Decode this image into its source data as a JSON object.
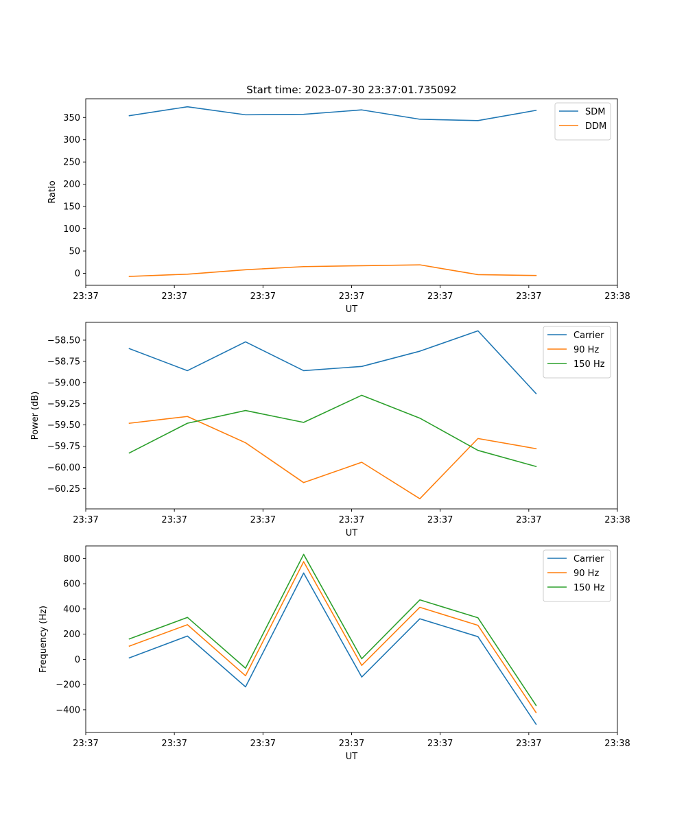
{
  "chart_data": [
    {
      "type": "line",
      "title": "Start time: 2023-07-30 23:37:01.735092",
      "xlabel": "UT",
      "ylabel": "Ratio",
      "x": [
        0,
        1,
        2,
        3,
        4,
        5,
        6,
        7
      ],
      "xlim": [
        -0.75,
        8.4
      ],
      "xtick_positions": [
        -0.75,
        0.775,
        2.3,
        3.825,
        5.35,
        6.875,
        8.4
      ],
      "xticks": [
        "23:37",
        "23:37",
        "23:37",
        "23:37",
        "23:37",
        "23:37",
        "23:38"
      ],
      "ylim": [
        -27,
        392
      ],
      "yticks": [
        0,
        50,
        100,
        150,
        200,
        250,
        300,
        350
      ],
      "legend": "top-right",
      "series": [
        {
          "name": "SDM",
          "color": "#1f77b4",
          "values": [
            354,
            374,
            356,
            357,
            367,
            346,
            343,
            366
          ]
        },
        {
          "name": "DDM",
          "color": "#ff7f0e",
          "values": [
            -7,
            -2,
            8,
            15,
            17,
            19,
            -3,
            -5
          ]
        }
      ]
    },
    {
      "type": "line",
      "title": "",
      "xlabel": "UT",
      "ylabel": "Power (dB)",
      "x": [
        0,
        1,
        2,
        3,
        4,
        5,
        6,
        7
      ],
      "xlim": [
        -0.75,
        8.4
      ],
      "xtick_positions": [
        -0.75,
        0.775,
        2.3,
        3.825,
        5.35,
        6.875,
        8.4
      ],
      "xticks": [
        "23:37",
        "23:37",
        "23:37",
        "23:37",
        "23:37",
        "23:37",
        "23:38"
      ],
      "ylim": [
        -60.49,
        -58.29
      ],
      "yticks": [
        -60.25,
        -60.0,
        -59.75,
        -59.5,
        -59.25,
        -59.0,
        -58.75,
        -58.5
      ],
      "ytick_labels": [
        "−60.25",
        "−60.00",
        "−59.75",
        "−59.50",
        "−59.25",
        "−59.00",
        "−58.75",
        "−58.50"
      ],
      "legend": "top-right",
      "series": [
        {
          "name": "Carrier",
          "color": "#1f77b4",
          "values": [
            -58.6,
            -58.86,
            -58.52,
            -58.86,
            -58.81,
            -58.63,
            -58.39,
            -59.13
          ]
        },
        {
          "name": "90 Hz",
          "color": "#ff7f0e",
          "values": [
            -59.48,
            -59.4,
            -59.71,
            -60.18,
            -59.94,
            -60.37,
            -59.66,
            -59.78
          ]
        },
        {
          "name": "150 Hz",
          "color": "#2ca02c",
          "values": [
            -59.83,
            -59.48,
            -59.33,
            -59.47,
            -59.15,
            -59.42,
            -59.8,
            -59.99
          ]
        }
      ]
    },
    {
      "type": "line",
      "title": "",
      "xlabel": "UT",
      "ylabel": "Frequency (Hz)",
      "x": [
        0,
        1,
        2,
        3,
        4,
        5,
        6,
        7
      ],
      "xlim": [
        -0.75,
        8.4
      ],
      "xtick_positions": [
        -0.75,
        0.775,
        2.3,
        3.825,
        5.35,
        6.875,
        8.4
      ],
      "xticks": [
        "23:37",
        "23:37",
        "23:37",
        "23:37",
        "23:37",
        "23:37",
        "23:38"
      ],
      "ylim": [
        -580,
        900
      ],
      "yticks": [
        -400,
        -200,
        0,
        200,
        400,
        600,
        800
      ],
      "ytick_labels": [
        "−400",
        "−200",
        "0",
        "200",
        "400",
        "600",
        "800"
      ],
      "legend": "top-right",
      "series": [
        {
          "name": "Carrier",
          "color": "#1f77b4",
          "values": [
            12,
            185,
            -218,
            685,
            -140,
            322,
            180,
            -515
          ]
        },
        {
          "name": "90 Hz",
          "color": "#ff7f0e",
          "values": [
            105,
            275,
            -130,
            775,
            -48,
            413,
            270,
            -422
          ]
        },
        {
          "name": "150 Hz",
          "color": "#2ca02c",
          "values": [
            162,
            333,
            -70,
            833,
            5,
            472,
            330,
            -365
          ]
        }
      ]
    }
  ]
}
